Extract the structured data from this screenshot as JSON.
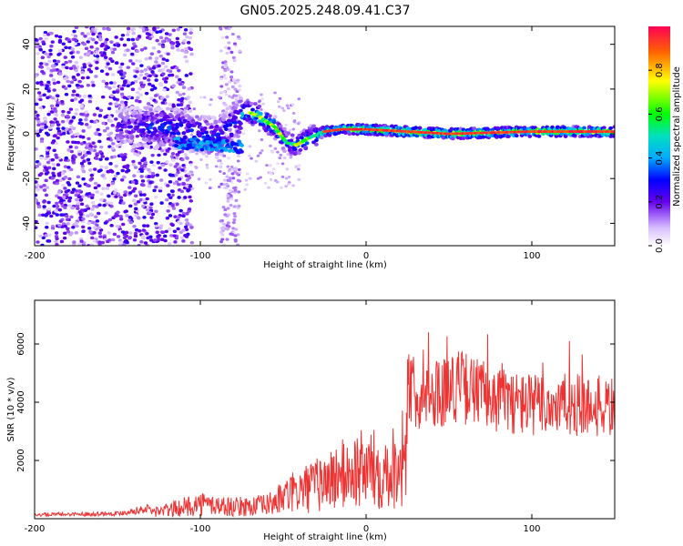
{
  "title": "GN05.2025.248.09.41.C37",
  "chart_data": [
    {
      "type": "heatmap",
      "title": "GN05.2025.248.09.41.C37",
      "xlabel": "Height of straight line (km)",
      "ylabel": "Frequency (Hz)",
      "xlim": [
        -200,
        150
      ],
      "ylim": [
        -50,
        48
      ],
      "xticks": [
        -200,
        -100,
        0,
        100
      ],
      "yticks": [
        -40,
        -20,
        0,
        20,
        40
      ],
      "colorbar": {
        "label": "Normalized spectral amplitude",
        "ticks": [
          "0.0",
          "0.2",
          "0.4",
          "0.6",
          "0.8"
        ],
        "range": [
          0,
          1
        ]
      },
      "ridge": [
        {
          "x": -130,
          "y": 3
        },
        {
          "x": -110,
          "y": 2
        },
        {
          "x": -90,
          "y": -2
        },
        {
          "x": -72,
          "y": 10
        },
        {
          "x": -65,
          "y": 8
        },
        {
          "x": -55,
          "y": 3
        },
        {
          "x": -48,
          "y": -4
        },
        {
          "x": -42,
          "y": -5
        },
        {
          "x": -35,
          "y": -2
        },
        {
          "x": -25,
          "y": 1
        },
        {
          "x": -15,
          "y": 2
        },
        {
          "x": 0,
          "y": 2
        },
        {
          "x": 50,
          "y": 0
        },
        {
          "x": 100,
          "y": 1
        },
        {
          "x": 150,
          "y": 1
        }
      ]
    },
    {
      "type": "line",
      "title": "",
      "xlabel": "Height of straight line (km)",
      "ylabel": "SNR (10 * v/v)",
      "xlim": [
        -200,
        150
      ],
      "ylim": [
        0,
        7500
      ],
      "xticks": [
        -200,
        -100,
        0,
        100
      ],
      "yticks": [
        2000,
        4000,
        6000
      ],
      "color": "#ee3333",
      "envelope": [
        {
          "x": -200,
          "y": 150
        },
        {
          "x": -150,
          "y": 200
        },
        {
          "x": -120,
          "y": 500
        },
        {
          "x": -100,
          "y": 900
        },
        {
          "x": -80,
          "y": 700
        },
        {
          "x": -60,
          "y": 800
        },
        {
          "x": -45,
          "y": 1500
        },
        {
          "x": -30,
          "y": 2000
        },
        {
          "x": -15,
          "y": 2600
        },
        {
          "x": 0,
          "y": 3000
        },
        {
          "x": 10,
          "y": 2900
        },
        {
          "x": 20,
          "y": 3300
        },
        {
          "x": 25,
          "y": 4600
        },
        {
          "x": 35,
          "y": 4300
        },
        {
          "x": 55,
          "y": 4700
        },
        {
          "x": 80,
          "y": 4200
        },
        {
          "x": 100,
          "y": 4000
        },
        {
          "x": 125,
          "y": 4000
        },
        {
          "x": 150,
          "y": 3900
        }
      ]
    }
  ]
}
